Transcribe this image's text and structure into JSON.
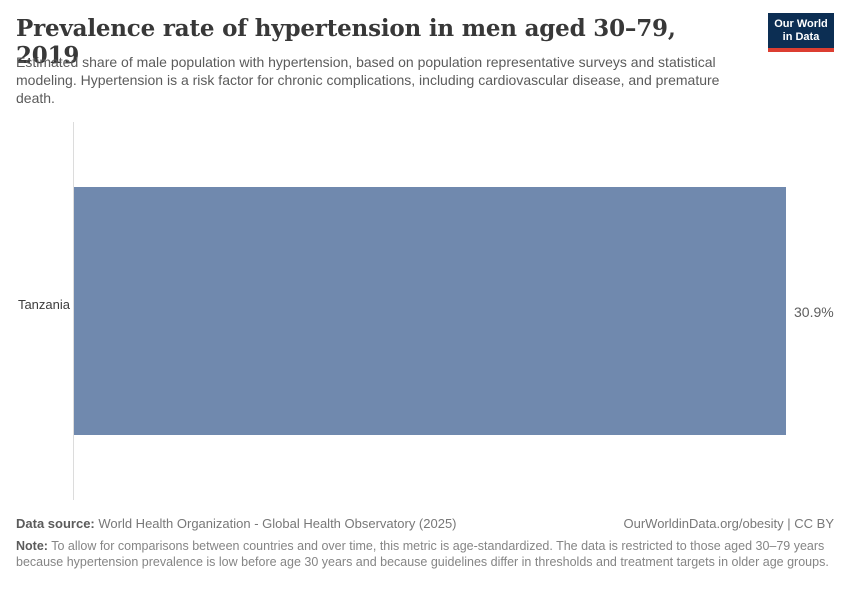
{
  "header": {
    "title": "Prevalence rate of hypertension in men aged 30–79, 2019",
    "subtitle": "Estimated share of male population with hypertension, based on population representative surveys and statistical modeling. Hypertension is a risk factor for chronic complications, including cardiovascular disease, and premature death.",
    "logo": {
      "line1": "Our World",
      "line2": "in Data"
    }
  },
  "chart_data": {
    "type": "bar",
    "orientation": "horizontal",
    "categories": [
      "Tanzania"
    ],
    "values": [
      30.9
    ],
    "value_labels": [
      "30.9%"
    ],
    "title": "Prevalence rate of hypertension in men aged 30–79, 2019",
    "xlabel": "",
    "ylabel": "",
    "xlim": [
      0,
      30.9
    ],
    "grid": false,
    "legend": false,
    "bar_color": "#7089ae"
  },
  "footer": {
    "datasource_label": "Data source:",
    "datasource_text": " World Health Organization - Global Health Observatory (2025)",
    "link_text": "OurWorldinData.org/obesity | CC BY",
    "note_label": "Note:",
    "note_text": " To allow for comparisons between countries and over time, this metric is age-standardized. The data is restricted to those aged 30–79 years because hypertension prevalence is low before age 30 years and because guidelines differ in thresholds and treatment targets in older age groups."
  },
  "colors": {
    "bar": "#7089ae",
    "logo_navy": "#0c2e53",
    "logo_red": "#dc3e31",
    "axis_line": "#dcdcdc",
    "title_text": "#383838",
    "body_text": "#5b5b5b"
  }
}
